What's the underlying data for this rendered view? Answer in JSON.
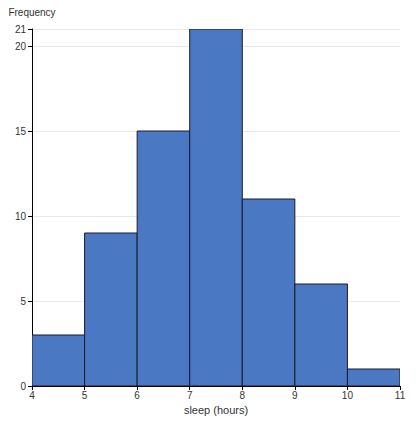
{
  "chart_data": {
    "type": "histogram",
    "bins": [
      4,
      5,
      6,
      7,
      8,
      9,
      10,
      11
    ],
    "counts": [
      3,
      9,
      15,
      21,
      11,
      6,
      1
    ],
    "color": "#4a78c2",
    "xlabel": "sleep (hours)",
    "ylabel": "Frequency",
    "xlim": [
      4,
      11
    ],
    "xticks": [
      4,
      5,
      6,
      7,
      8,
      9,
      10,
      11
    ],
    "ylim": [
      0,
      21
    ],
    "yticks": [
      0,
      5,
      10,
      15,
      20
    ],
    "grid": true
  }
}
